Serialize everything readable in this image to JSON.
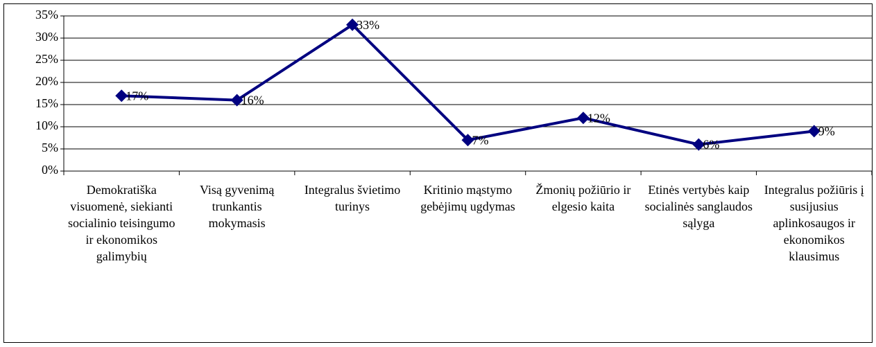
{
  "chart_data": {
    "type": "line",
    "categories": [
      "Demokratiška visuomenė, siekianti socialinio teisingumo ir ekonomikos galimybių",
      "Visą gyvenimą trunkantis mokymasis",
      "Integralus švietimo turinys",
      "Kritinio mąstymo gebėjimų ugdymas",
      "Žmonių požiūrio ir elgesio kaita",
      "Etinės vertybės kaip socialinės sanglaudos sąlyga",
      "Integralus požiūris į susijusius aplinkosaugos ir ekonomikos klausimus"
    ],
    "values": [
      17,
      16,
      33,
      7,
      12,
      6,
      9
    ],
    "value_labels": [
      "17%",
      "16%",
      "33%",
      "7%",
      "12%",
      "6%",
      "9%"
    ],
    "color": "#000080",
    "ylim": [
      0,
      35
    ],
    "yticks": [
      {
        "value": 0,
        "label": "0%"
      },
      {
        "value": 5,
        "label": "5%"
      },
      {
        "value": 10,
        "label": "10%"
      },
      {
        "value": 15,
        "label": "15%"
      },
      {
        "value": 20,
        "label": "20%"
      },
      {
        "value": 25,
        "label": "25%"
      },
      {
        "value": 30,
        "label": "30%"
      },
      {
        "value": 35,
        "label": "35%"
      }
    ],
    "grid": true
  }
}
